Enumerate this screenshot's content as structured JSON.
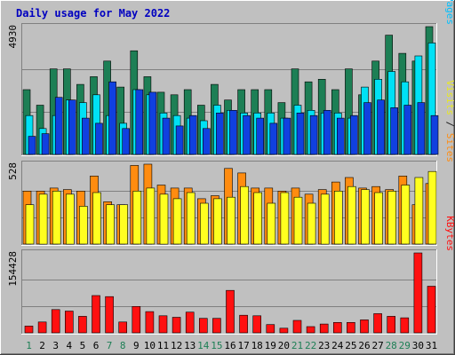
{
  "chart_data": {
    "title": "Daily usage for May 2022",
    "type": "bar",
    "days": [
      "1",
      "2",
      "3",
      "4",
      "5",
      "6",
      "7",
      "8",
      "9",
      "10",
      "11",
      "12",
      "13",
      "14",
      "15",
      "16",
      "17",
      "18",
      "19",
      "20",
      "21",
      "22",
      "23",
      "24",
      "25",
      "26",
      "27",
      "28",
      "29",
      "30",
      "31"
    ],
    "weekend_days": [
      "1",
      "7",
      "8",
      "14",
      "15",
      "21",
      "22",
      "28",
      "29"
    ],
    "panels": [
      {
        "id": "hits",
        "max_label": "4930",
        "ymax": 4930,
        "ylabel": [
          "Pages",
          "Files",
          "Hits"
        ],
        "series": [
          {
            "name": "Hits",
            "color": "#1d7f55",
            "values": [
              2500,
              1900,
              3300,
              3300,
              2700,
              3000,
              3600,
              2600,
              4000,
              3000,
              2400,
              2300,
              2500,
              1900,
              2700,
              2100,
              2500,
              2500,
              2500,
              2000,
              3300,
              2800,
              2900,
              2500,
              3300,
              2300,
              3600,
              4600,
              3900,
              3600,
              5000
            ]
          },
          {
            "name": "Files",
            "color": "#00e1f5",
            "values": [
              1500,
              1000,
              1500,
              2100,
              2000,
              2300,
              1500,
              1200,
              2500,
              2300,
              1600,
              1500,
              1400,
              1300,
              1900,
              1700,
              1600,
              1600,
              1600,
              1400,
              1900,
              1700,
              1600,
              1600,
              1400,
              2600,
              2900,
              3200,
              2800,
              3800,
              4300
            ]
          },
          {
            "name": "Pages",
            "color": "#1040e0",
            "values": [
              700,
              800,
              2200,
              2100,
              1400,
              1200,
              2800,
              1000,
              2500,
              2400,
              1400,
              1100,
              1500,
              1000,
              1600,
              1700,
              1500,
              1400,
              1200,
              1400,
              1600,
              1500,
              1700,
              1400,
              1500,
              2000,
              2100,
              1800,
              1900,
              2000,
              1500
            ]
          }
        ]
      },
      {
        "id": "visits",
        "max_label": "528",
        "ymax": 528,
        "ylabel": [
          "Sites",
          "Visits"
        ],
        "series": [
          {
            "name": "Visits",
            "color": "#ff8c10",
            "values": [
              350,
              350,
              370,
              360,
              350,
              450,
              280,
              260,
              520,
              528,
              390,
              370,
              370,
              300,
              320,
              500,
              470,
              370,
              370,
              350,
              370,
              330,
              360,
              410,
              440,
              370,
              380,
              360,
              450,
              260,
              400
            ]
          },
          {
            "name": "Sites",
            "color": "#ffff20",
            "values": [
              260,
              330,
              350,
              330,
              250,
              340,
              260,
              260,
              350,
              370,
              330,
              300,
              340,
              270,
              300,
              310,
              380,
              340,
              270,
              340,
              310,
              270,
              330,
              350,
              380,
              360,
              340,
              350,
              390,
              440,
              480
            ]
          }
        ]
      },
      {
        "id": "kbytes",
        "max_label": "154428",
        "ymax": 154428,
        "ylabel": [
          "KBytes"
        ],
        "series": [
          {
            "name": "KBytes",
            "color": "#ff1010",
            "values": [
              13000,
              21000,
              45000,
              42000,
              32000,
              72000,
              70000,
              21000,
              51000,
              41000,
              33000,
              30000,
              40000,
              28000,
              28000,
              82000,
              34000,
              33000,
              16000,
              9000,
              24000,
              12000,
              17000,
              20000,
              20000,
              25000,
              37000,
              32000,
              29000,
              160000,
              90000
            ]
          }
        ]
      }
    ],
    "ylabel_colors": {
      "Pages": "#00c0ff",
      "Files": "#0050ff",
      "Hits": "#1d7f55",
      "Sites": "#ff8c10",
      "Visits": "#e8e820",
      "KBytes": "#ff1010",
      "separator": "#202020"
    }
  }
}
